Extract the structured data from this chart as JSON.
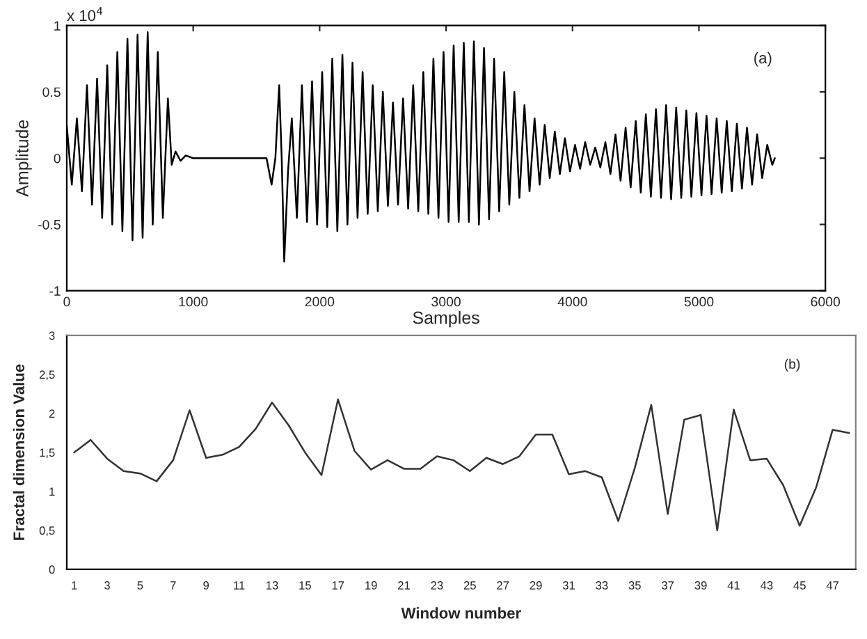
{
  "chart_data": [
    {
      "type": "line",
      "xlabel": "Samples",
      "ylabel": "Amplitude",
      "annotations": [
        "x 10$^{4}$",
        "(a)"
      ],
      "color": "#000000",
      "marker": "none",
      "line_style": "solid",
      "grid": false,
      "legend": false,
      "xlim": [
        0,
        6000
      ],
      "xticks": [
        0,
        1000,
        2000,
        3000,
        4000,
        5000,
        6000
      ],
      "ylim": [
        -1,
        1
      ],
      "yticks": [
        -1,
        -0.5,
        0,
        0.5,
        1
      ],
      "x": [
        0,
        40,
        80,
        120,
        160,
        200,
        240,
        280,
        320,
        360,
        400,
        440,
        480,
        520,
        560,
        600,
        640,
        680,
        720,
        760,
        800,
        830,
        860,
        900,
        940,
        1000,
        1300,
        1580,
        1620,
        1650,
        1680,
        1700,
        1720,
        1750,
        1780,
        1820,
        1860,
        1900,
        1940,
        1980,
        2020,
        2060,
        2100,
        2140,
        2180,
        2220,
        2260,
        2300,
        2340,
        2380,
        2420,
        2460,
        2500,
        2540,
        2580,
        2620,
        2660,
        2700,
        2740,
        2780,
        2820,
        2860,
        2900,
        2940,
        2980,
        3020,
        3060,
        3100,
        3140,
        3180,
        3220,
        3260,
        3300,
        3340,
        3380,
        3420,
        3460,
        3500,
        3540,
        3580,
        3620,
        3660,
        3700,
        3740,
        3780,
        3820,
        3860,
        3900,
        3940,
        3980,
        4020,
        4060,
        4100,
        4140,
        4180,
        4220,
        4260,
        4300,
        4340,
        4380,
        4420,
        4460,
        4500,
        4540,
        4580,
        4620,
        4660,
        4700,
        4740,
        4780,
        4820,
        4860,
        4900,
        4940,
        4980,
        5020,
        5060,
        5100,
        5140,
        5180,
        5220,
        5260,
        5300,
        5340,
        5380,
        5420,
        5460,
        5500,
        5540,
        5580,
        5600
      ],
      "values": [
        0.25,
        -0.2,
        0.3,
        -0.25,
        0.55,
        -0.35,
        0.6,
        -0.45,
        0.7,
        -0.5,
        0.8,
        -0.55,
        0.9,
        -0.62,
        0.93,
        -0.6,
        0.95,
        -0.5,
        0.8,
        -0.45,
        0.45,
        -0.05,
        0.05,
        -0.02,
        0.02,
        0,
        0,
        0,
        -0.2,
        0,
        0.55,
        0,
        -0.78,
        -0.1,
        0.3,
        -0.45,
        0.55,
        -0.48,
        0.58,
        -0.5,
        0.65,
        -0.52,
        0.75,
        -0.55,
        0.78,
        -0.5,
        0.72,
        -0.45,
        0.65,
        -0.42,
        0.55,
        -0.4,
        0.5,
        -0.36,
        0.42,
        -0.35,
        0.45,
        -0.38,
        0.55,
        -0.4,
        0.65,
        -0.42,
        0.75,
        -0.45,
        0.8,
        -0.48,
        0.85,
        -0.48,
        0.87,
        -0.48,
        0.88,
        -0.5,
        0.83,
        -0.46,
        0.75,
        -0.4,
        0.65,
        -0.35,
        0.5,
        -0.3,
        0.4,
        -0.25,
        0.3,
        -0.2,
        0.25,
        -0.15,
        0.2,
        -0.12,
        0.15,
        -0.1,
        0.1,
        -0.08,
        0.12,
        -0.05,
        0.08,
        -0.07,
        0.12,
        -0.12,
        0.18,
        -0.17,
        0.23,
        -0.22,
        0.28,
        -0.26,
        0.33,
        -0.29,
        0.37,
        -0.3,
        0.4,
        -0.31,
        0.38,
        -0.3,
        0.36,
        -0.29,
        0.34,
        -0.28,
        0.32,
        -0.27,
        0.3,
        -0.26,
        0.28,
        -0.25,
        0.26,
        -0.23,
        0.23,
        -0.2,
        0.18,
        -0.15,
        0.1,
        -0.05,
        0
      ]
    },
    {
      "type": "line",
      "xlabel": "Window number",
      "ylabel": "Fractal dimension Value",
      "annotations": [
        "(b)"
      ],
      "color": "#333333",
      "marker": "none",
      "line_style": "solid",
      "grid": false,
      "legend": false,
      "categories": [
        "1",
        null,
        "3",
        null,
        "5",
        null,
        "7",
        null,
        "9",
        null,
        "11",
        null,
        "13",
        null,
        "15",
        null,
        "17",
        null,
        "19",
        null,
        "21",
        null,
        "23",
        null,
        "25",
        null,
        "27",
        null,
        "29",
        null,
        "31",
        null,
        "33",
        null,
        "35",
        null,
        "37",
        null,
        "39",
        null,
        "41",
        null,
        "43",
        null,
        "45",
        null,
        "47",
        null
      ],
      "ylim": [
        0,
        3
      ],
      "yticks": [
        0,
        {
          "value": 0.5,
          "label": "0,5"
        },
        1,
        {
          "value": 1.5,
          "label": "1,5"
        },
        2,
        {
          "value": 2.5,
          "label": "2,5"
        },
        3
      ],
      "values": [
        1.5,
        1.66,
        1.42,
        1.26,
        1.23,
        1.13,
        1.4,
        2.04,
        1.43,
        1.47,
        1.57,
        1.8,
        2.14,
        1.85,
        1.5,
        1.21,
        2.18,
        1.52,
        1.28,
        1.4,
        1.29,
        1.29,
        1.45,
        1.4,
        1.26,
        1.43,
        1.35,
        1.45,
        1.73,
        1.73,
        1.22,
        1.26,
        1.18,
        0.62,
        1.3,
        2.11,
        0.71,
        1.92,
        1.98,
        0.5,
        2.05,
        1.4,
        1.42,
        1.08,
        0.56,
        1.05,
        1.79,
        1.75
      ]
    }
  ]
}
